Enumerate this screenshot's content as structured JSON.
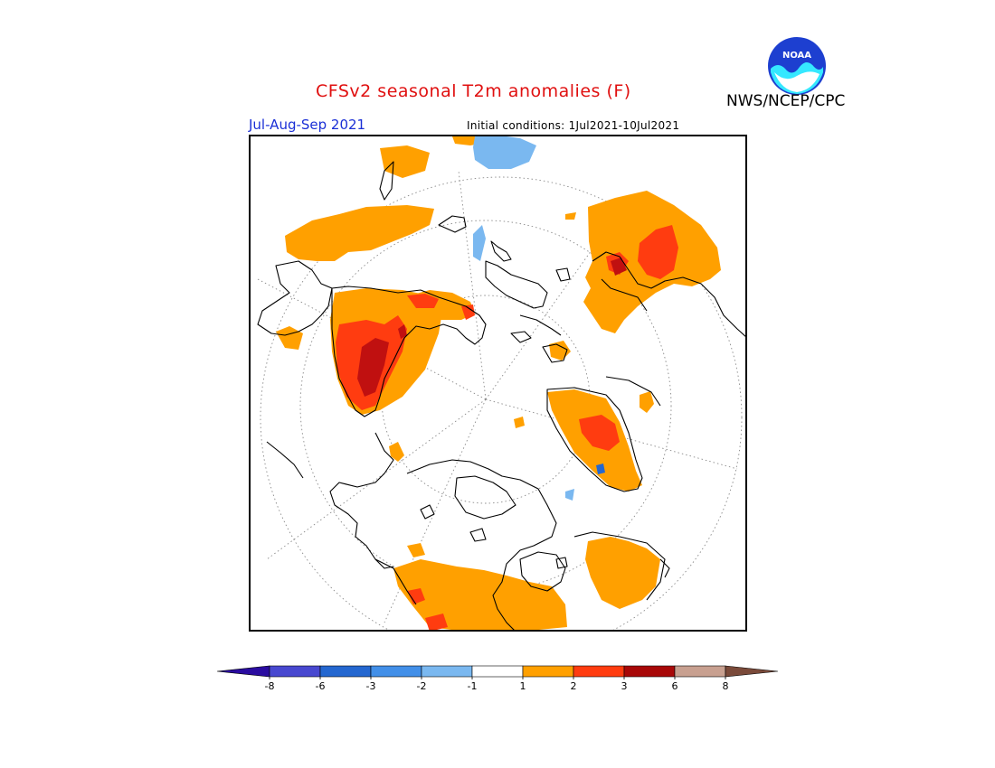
{
  "title": "CFSv2 seasonal T2m anomalies (F)",
  "agency": "NWS/NCEP/CPC",
  "logo": {
    "text": "NOAA",
    "icon": "noaa-logo"
  },
  "season": "Jul-Aug-Sep 2021",
  "initial_conditions": "Initial conditions: 1Jul2021-10Jul2021",
  "map": {
    "projection": "polar stereographic, North Pole",
    "features": [
      "coastlines",
      "dotted graticule",
      "anomaly shading"
    ]
  },
  "legend": {
    "ticks": [
      "-8",
      "-6",
      "-3",
      "-2",
      "-1",
      "1",
      "2",
      "3",
      "6",
      "8"
    ],
    "bins": [
      {
        "color": "#2a0ca0"
      },
      {
        "color": "#4848d0"
      },
      {
        "color": "#2467d0"
      },
      {
        "color": "#428fe8"
      },
      {
        "color": "#7ab8f0"
      },
      {
        "color": "#ffffff"
      },
      {
        "color": "#ffa000"
      },
      {
        "color": "#ff3c10"
      },
      {
        "color": "#a80808"
      },
      {
        "color": "#c8a090"
      },
      {
        "color": "#7a4a3a"
      }
    ]
  },
  "palette": {
    "warm1": "#ffa000",
    "warm2": "#ff3c10",
    "warm3": "#c01010",
    "cool1": "#7ab8f0",
    "cool2": "#428fe8",
    "graticule": "#8a8a8a",
    "title_red": "#e01010",
    "season_blue": "#1a2fd6"
  }
}
